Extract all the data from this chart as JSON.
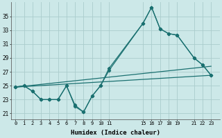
{
  "bg_color": "#cce8e8",
  "grid_color": "#aacccc",
  "line_color": "#1a7070",
  "xlabel": "Humidex (Indice chaleur)",
  "yticks": [
    21,
    23,
    25,
    27,
    29,
    31,
    33,
    35
  ],
  "ylim": [
    20.2,
    37.0
  ],
  "xlim": [
    -0.5,
    24.0
  ],
  "line1_x": [
    0,
    1,
    2,
    3,
    4,
    5,
    6,
    7,
    8,
    9,
    10,
    11,
    15,
    16,
    17,
    18,
    19,
    21,
    22,
    23
  ],
  "line1_y": [
    24.8,
    25.0,
    24.2,
    23.0,
    23.0,
    23.0,
    25.0,
    22.0,
    21.2,
    23.5,
    25.0,
    27.2,
    34.0,
    36.3,
    33.2,
    32.5,
    32.3,
    29.0,
    28.0,
    26.5
  ],
  "line2_x": [
    0,
    1,
    2,
    3,
    4,
    5,
    6,
    7,
    8,
    9,
    10,
    11,
    15,
    16,
    17,
    18,
    19,
    21,
    22,
    23
  ],
  "line2_y": [
    24.8,
    25.0,
    24.2,
    23.0,
    23.0,
    23.0,
    25.0,
    22.2,
    21.2,
    23.5,
    25.0,
    27.5,
    34.0,
    36.3,
    33.2,
    32.5,
    32.3,
    29.0,
    28.0,
    26.5
  ],
  "line3_x": [
    0,
    23
  ],
  "line3_y": [
    24.8,
    27.8
  ],
  "line4_x": [
    0,
    23
  ],
  "line4_y": [
    24.8,
    26.5
  ],
  "xticks": [
    0,
    1,
    2,
    3,
    4,
    5,
    6,
    7,
    8,
    9,
    10,
    11,
    15,
    16,
    17,
    18,
    19,
    21,
    22,
    23
  ],
  "xtick_labels": [
    "0",
    "1",
    "2",
    "3",
    "4",
    "5",
    "6",
    "7",
    "8",
    "9",
    "10",
    "11",
    "15",
    "16",
    "17",
    "18",
    "19",
    "21",
    "22",
    "23"
  ]
}
